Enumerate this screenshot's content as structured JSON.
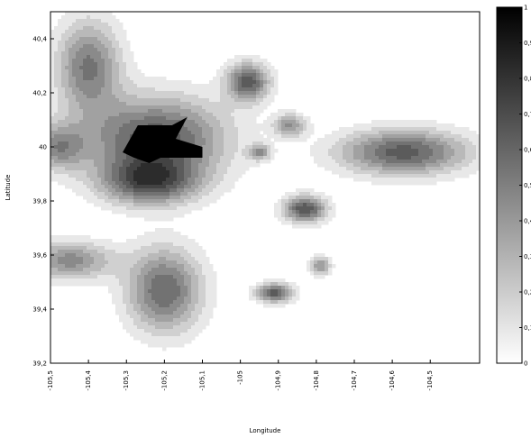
{
  "chart_data": {
    "type": "heatmap",
    "style": "filled-contour",
    "colormap": "grayscale",
    "xlabel": "Longitude",
    "ylabel": "Latitude",
    "xlim": [
      -105.5,
      -104.37
    ],
    "ylim": [
      39.2,
      40.5
    ],
    "x_ticks": [
      "-105,5",
      "-105,4",
      "-105,3",
      "-105,2",
      "-105,1",
      "-105",
      "-104,9",
      "-104,8",
      "-104,7",
      "-104,6",
      "-104,5"
    ],
    "x_tick_values": [
      -105.5,
      -105.4,
      -105.3,
      -105.2,
      -105.1,
      -105.0,
      -104.9,
      -104.8,
      -104.7,
      -104.6,
      -104.5
    ],
    "y_ticks": [
      "39,2",
      "39,4",
      "39,6",
      "39,8",
      "40",
      "40,2",
      "40,4"
    ],
    "y_tick_values": [
      39.2,
      39.4,
      39.6,
      39.8,
      40.0,
      40.2,
      40.4
    ],
    "colorbar": {
      "range": [
        0,
        1
      ],
      "tick_labels": [
        "0",
        "0,1",
        "0,2",
        "0,3",
        "0,4",
        "0,5",
        "0,6",
        "0,7",
        "0,8",
        "0,9",
        "1"
      ],
      "tick_values": [
        0,
        0.1,
        0.2,
        0.3,
        0.4,
        0.5,
        0.6,
        0.7,
        0.8,
        0.9,
        1
      ]
    },
    "peaks": [
      {
        "lon": -105.22,
        "lat": 40.03,
        "amp": 0.78,
        "sx": 0.13,
        "sy": 0.11
      },
      {
        "lon": -105.4,
        "lat": 40.3,
        "amp": 0.62,
        "sx": 0.06,
        "sy": 0.12
      },
      {
        "lon": -105.24,
        "lat": 39.87,
        "amp": 0.7,
        "sx": 0.09,
        "sy": 0.06
      },
      {
        "lon": -105.2,
        "lat": 39.47,
        "amp": 0.7,
        "sx": 0.07,
        "sy": 0.11
      },
      {
        "lon": -105.45,
        "lat": 39.58,
        "amp": 0.55,
        "sx": 0.08,
        "sy": 0.05
      },
      {
        "lon": -105.48,
        "lat": 40.0,
        "amp": 0.5,
        "sx": 0.05,
        "sy": 0.06
      },
      {
        "lon": -104.98,
        "lat": 40.24,
        "amp": 0.75,
        "sx": 0.04,
        "sy": 0.05
      },
      {
        "lon": -104.87,
        "lat": 40.08,
        "amp": 0.5,
        "sx": 0.03,
        "sy": 0.03
      },
      {
        "lon": -104.95,
        "lat": 39.98,
        "amp": 0.5,
        "sx": 0.02,
        "sy": 0.02
      },
      {
        "lon": -104.57,
        "lat": 39.98,
        "amp": 0.75,
        "sx": 0.12,
        "sy": 0.06
      },
      {
        "lon": -104.83,
        "lat": 39.77,
        "amp": 0.8,
        "sx": 0.04,
        "sy": 0.035
      },
      {
        "lon": -104.91,
        "lat": 39.46,
        "amp": 0.75,
        "sx": 0.035,
        "sy": 0.025
      },
      {
        "lon": -104.79,
        "lat": 39.56,
        "amp": 0.5,
        "sx": 0.02,
        "sy": 0.025
      }
    ],
    "max_region": [
      [
        -105.27,
        40.08
      ],
      [
        -105.18,
        40.08
      ],
      [
        -105.14,
        40.11
      ],
      [
        -105.17,
        40.03
      ],
      [
        -105.1,
        40.0
      ],
      [
        -105.1,
        39.96
      ],
      [
        -105.21,
        39.96
      ],
      [
        -105.24,
        39.94
      ],
      [
        -105.28,
        39.96
      ],
      [
        -105.31,
        39.98
      ],
      [
        -105.29,
        40.03
      ],
      [
        -105.27,
        40.08
      ]
    ]
  }
}
